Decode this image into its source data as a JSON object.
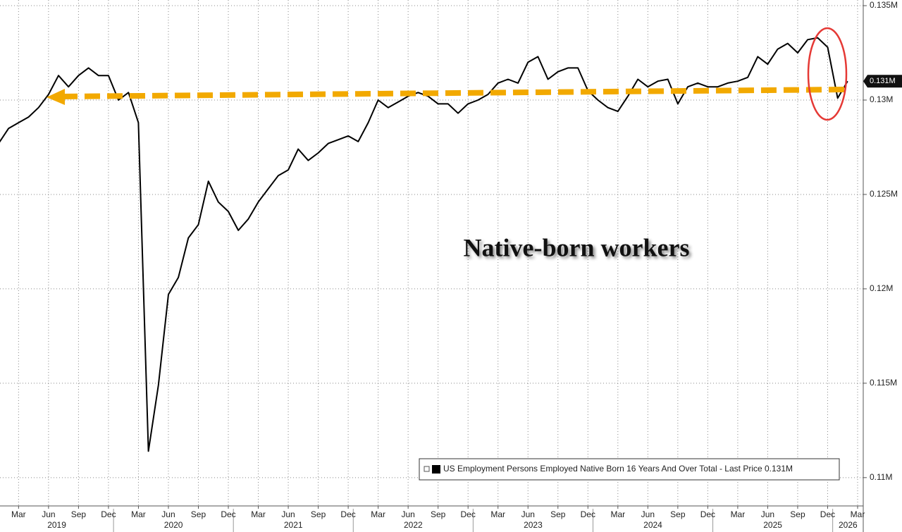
{
  "chart_data": {
    "type": "line",
    "annotation": "Native-born workers",
    "x": [
      "2019-01",
      "2019-02",
      "2019-03",
      "2019-04",
      "2019-05",
      "2019-06",
      "2019-07",
      "2019-08",
      "2019-09",
      "2019-10",
      "2019-11",
      "2019-12",
      "2020-01",
      "2020-02",
      "2020-03",
      "2020-04",
      "2020-05",
      "2020-06",
      "2020-07",
      "2020-08",
      "2020-09",
      "2020-10",
      "2020-11",
      "2020-12",
      "2021-01",
      "2021-02",
      "2021-03",
      "2021-04",
      "2021-05",
      "2021-06",
      "2021-07",
      "2021-08",
      "2021-09",
      "2021-10",
      "2021-11",
      "2021-12",
      "2022-01",
      "2022-02",
      "2022-03",
      "2022-04",
      "2022-05",
      "2022-06",
      "2022-07",
      "2022-08",
      "2022-09",
      "2022-10",
      "2022-11",
      "2022-12",
      "2023-01",
      "2023-02",
      "2023-03",
      "2023-04",
      "2023-05",
      "2023-06",
      "2023-07",
      "2023-08",
      "2023-09",
      "2023-10",
      "2023-11",
      "2023-12",
      "2024-01",
      "2024-02",
      "2024-03",
      "2024-04",
      "2024-05",
      "2024-06",
      "2024-07",
      "2024-08",
      "2024-09",
      "2024-10",
      "2024-11",
      "2024-12",
      "2025-01",
      "2025-02",
      "2025-03",
      "2025-04",
      "2025-05",
      "2025-06",
      "2025-07",
      "2025-08",
      "2025-09",
      "2025-10",
      "2025-11",
      "2025-12",
      "2026-01",
      "2026-02"
    ],
    "series": [
      {
        "name": "US Employment Persons Employed Native Born 16 Years And Over Total - Last Price 0.131M",
        "color": "#000000",
        "values": [
          0.1277,
          0.1285,
          0.1288,
          0.1291,
          0.1296,
          0.1303,
          0.1313,
          0.1307,
          0.1313,
          0.1317,
          0.1313,
          0.1313,
          0.13,
          0.1304,
          0.1288,
          0.1114,
          0.1149,
          0.1197,
          0.1206,
          0.1227,
          0.1234,
          0.1257,
          0.1246,
          0.1241,
          0.1231,
          0.1237,
          0.1246,
          0.1253,
          0.126,
          0.1263,
          0.1274,
          0.1268,
          0.1272,
          0.1277,
          0.1279,
          0.1281,
          0.1278,
          0.1288,
          0.13,
          0.1296,
          0.1299,
          0.1302,
          0.1304,
          0.1302,
          0.1298,
          0.1298,
          0.1293,
          0.1298,
          0.13,
          0.1303,
          0.1309,
          0.1311,
          0.1309,
          0.132,
          0.1323,
          0.1311,
          0.1315,
          0.1317,
          0.1317,
          0.1305,
          0.13,
          0.1296,
          0.1294,
          0.1302,
          0.1311,
          0.1307,
          0.131,
          0.1311,
          0.1298,
          0.1307,
          0.1309,
          0.1307,
          0.1307,
          0.1309,
          0.131,
          0.1312,
          0.1323,
          0.1319,
          0.1327,
          0.133,
          0.1325,
          0.1332,
          0.1333,
          0.1328,
          0.1301,
          0.131
        ]
      }
    ],
    "last_price": {
      "value": 0.131,
      "label": "0.131M"
    },
    "xlim": [
      "2019-01",
      "2026-03"
    ],
    "xticks": [
      {
        "value": "2019-03",
        "label": "Mar"
      },
      {
        "value": "2019-06",
        "label": "Jun"
      },
      {
        "value": "2019-09",
        "label": "Sep"
      },
      {
        "value": "2019-12",
        "label": "Dec"
      },
      {
        "value": "2020-03",
        "label": "Mar"
      },
      {
        "value": "2020-06",
        "label": "Jun"
      },
      {
        "value": "2020-09",
        "label": "Sep"
      },
      {
        "value": "2020-12",
        "label": "Dec"
      },
      {
        "value": "2021-03",
        "label": "Mar"
      },
      {
        "value": "2021-06",
        "label": "Jun"
      },
      {
        "value": "2021-09",
        "label": "Sep"
      },
      {
        "value": "2021-12",
        "label": "Dec"
      },
      {
        "value": "2022-03",
        "label": "Mar"
      },
      {
        "value": "2022-06",
        "label": "Jun"
      },
      {
        "value": "2022-09",
        "label": "Sep"
      },
      {
        "value": "2022-12",
        "label": "Dec"
      },
      {
        "value": "2023-03",
        "label": "Mar"
      },
      {
        "value": "2023-06",
        "label": "Jun"
      },
      {
        "value": "2023-09",
        "label": "Sep"
      },
      {
        "value": "2023-12",
        "label": "Dec"
      },
      {
        "value": "2024-03",
        "label": "Mar"
      },
      {
        "value": "2024-06",
        "label": "Jun"
      },
      {
        "value": "2024-09",
        "label": "Sep"
      },
      {
        "value": "2024-12",
        "label": "Dec"
      },
      {
        "value": "2025-03",
        "label": "Mar"
      },
      {
        "value": "2025-06",
        "label": "Jun"
      },
      {
        "value": "2025-09",
        "label": "Sep"
      },
      {
        "value": "2025-12",
        "label": "Dec"
      },
      {
        "value": "2026-03",
        "label": "Mar"
      }
    ],
    "years": [
      "2019",
      "2020",
      "2021",
      "2022",
      "2023",
      "2024",
      "2025",
      "2026"
    ],
    "ylim": [
      0.1085,
      0.1353
    ],
    "yticks": [
      {
        "value": 0.11,
        "label": "0.11M"
      },
      {
        "value": 0.115,
        "label": "0.115M"
      },
      {
        "value": 0.12,
        "label": "0.12M"
      },
      {
        "value": 0.125,
        "label": "0.125M"
      },
      {
        "value": 0.13,
        "label": "0.13M"
      },
      {
        "value": 0.135,
        "label": "0.135M"
      }
    ],
    "grid": true
  }
}
